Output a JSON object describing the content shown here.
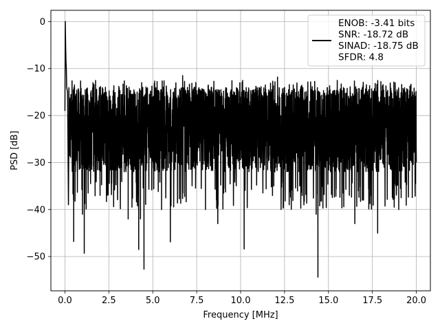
{
  "chart_data": {
    "type": "line",
    "xlabel": "Frequency [MHz]",
    "ylabel": "PSD [dB]",
    "xlim": [
      -0.8,
      20.8
    ],
    "ylim": [
      -57.3,
      2.4
    ],
    "xticks": [
      0.0,
      2.5,
      5.0,
      7.5,
      10.0,
      12.5,
      15.0,
      17.5,
      20.0
    ],
    "xtick_labels": [
      "0.0",
      "2.5",
      "5.0",
      "7.5",
      "10.0",
      "12.5",
      "15.0",
      "17.5",
      "20.0"
    ],
    "yticks": [
      0,
      -10,
      -20,
      -30,
      -40,
      -50
    ],
    "ytick_labels": [
      "0",
      "−10",
      "−20",
      "−30",
      "−40",
      "−50"
    ],
    "grid": true,
    "legend_position": "top-right",
    "series": [
      {
        "name": "ENOB: -3.41 bits\nSNR: -18.72 dB\nSINAD: -18.75 dB\nSFDR: 4.8",
        "color": "#000000",
        "x": [
          0.0,
          0.02,
          0.04,
          0.06,
          0.08,
          0.1,
          0.15,
          0.2,
          0.5,
          1.0,
          1.1,
          2.0,
          3.0,
          3.6,
          4.2,
          4.3,
          4.5,
          5.5,
          6.0,
          6.7,
          8.0,
          8.7,
          10.2,
          12.1,
          12.5,
          14.3,
          14.4,
          15.5,
          16.5,
          17.8,
          19.0,
          20.0
        ],
        "y": [
          -19.0,
          0.0,
          -5.0,
          -8.5,
          -10.0,
          -14.0,
          -15.0,
          -39.0,
          -46.8,
          -41.0,
          -49.3,
          -37.0,
          -37.5,
          -42.0,
          -48.5,
          -42.0,
          -52.7,
          -40.0,
          -46.9,
          -11.5,
          -40.0,
          -43.0,
          -48.4,
          -11.8,
          -14.0,
          -41.0,
          -54.4,
          -12.5,
          -43.0,
          -45.0,
          -40.0,
          -30.0
        ]
      }
    ]
  }
}
